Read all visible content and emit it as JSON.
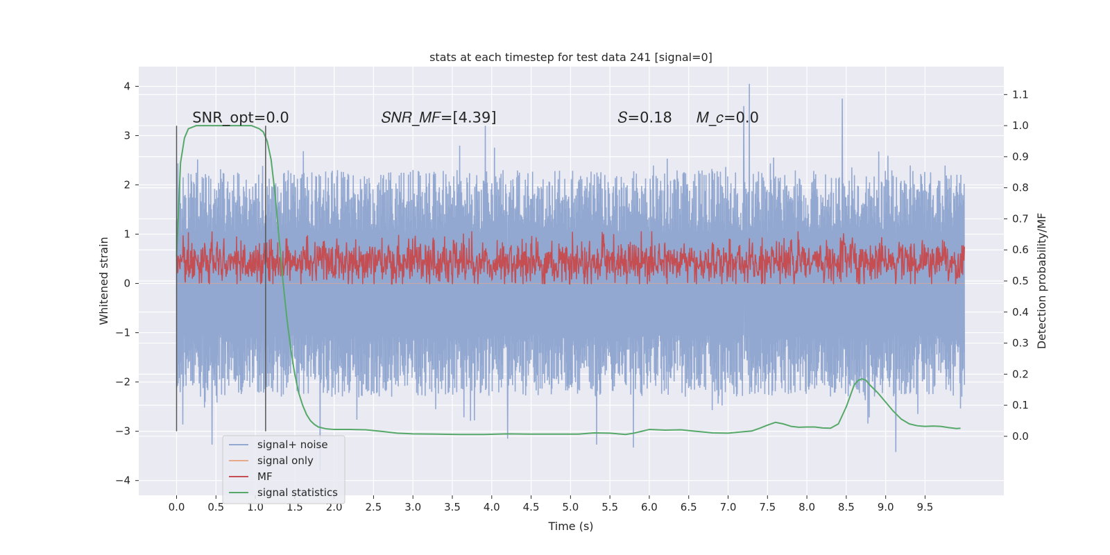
{
  "chart_data": {
    "type": "line",
    "title": "stats at each timestep for test data 241 [signal=0]",
    "xlabel": "Time (s)",
    "ylabel": "Whitened strain",
    "y2label": "Detection probability/MF",
    "xlim": [
      -0.48,
      10.5
    ],
    "ylim": [
      -4.3,
      4.4
    ],
    "y2lim": [
      -0.19,
      1.19
    ],
    "x_ticks": [
      "0.0",
      "0.5",
      "1.0",
      "1.5",
      "2.0",
      "2.5",
      "3.0",
      "3.5",
      "4.0",
      "4.5",
      "5.0",
      "5.5",
      "6.0",
      "6.5",
      "7.0",
      "7.5",
      "8.0",
      "8.5",
      "9.0",
      "9.5"
    ],
    "y_ticks": [
      "4",
      "3",
      "2",
      "1",
      "0",
      "−1",
      "−2",
      "−3",
      "−4"
    ],
    "y2_ticks": [
      "1.1",
      "1.0",
      "0.9",
      "0.8",
      "0.7",
      "0.6",
      "0.5",
      "0.4",
      "0.3",
      "0.2",
      "0.1",
      "0.0"
    ],
    "grid": true,
    "legend_position": "lower-left",
    "colors": {
      "signal_noise": "#92a8d1",
      "signal_only": "#e8a88a",
      "mf": "#c44e52",
      "signal_statistics": "#55a868",
      "background": "#eaeaf2",
      "vline": "#555555"
    },
    "annotations": [
      {
        "id": "snr-opt",
        "x": 0.2,
        "y": 3.27,
        "text": "SNR_opt=0.0"
      },
      {
        "id": "snr-mf",
        "x": 2.6,
        "y": 3.27,
        "text": "𝑆𝑁𝑅_𝑀𝐹=[4.39]"
      },
      {
        "id": "s",
        "x": 5.6,
        "y": 3.27,
        "text": "𝑆=0.18"
      },
      {
        "id": "mc",
        "x": 6.6,
        "y": 3.27,
        "text": "𝑀_𝑐=0.0"
      }
    ],
    "vlines": [
      {
        "x": 0.0,
        "ymin": -3.0,
        "ymax": 3.2
      },
      {
        "x": 1.13,
        "ymin": -3.0,
        "ymax": 3.2
      }
    ],
    "series": [
      {
        "name": "signal+ noise",
        "kind": "noise",
        "x_range": [
          0.0,
          10.0
        ],
        "y_range_typical": [
          -2.3,
          2.3
        ],
        "y_extremes": [
          -3.8,
          4.05
        ],
        "spikes": [
          {
            "x": 7.27,
            "y": 4.05
          },
          {
            "x": 8.45,
            "y": 3.75
          },
          {
            "x": 3.92,
            "y": 3.2
          },
          {
            "x": 7.2,
            "y": 3.6
          },
          {
            "x": 1.82,
            "y": -3.8
          },
          {
            "x": 9.13,
            "y": -3.42
          },
          {
            "x": 0.45,
            "y": -3.27
          },
          {
            "x": 5.8,
            "y": -3.33
          },
          {
            "x": 5.33,
            "y": -3.27
          },
          {
            "x": 4.2,
            "y": -3.15
          }
        ]
      },
      {
        "name": "signal only",
        "kind": "flat",
        "x_range": [
          0.0,
          10.0
        ],
        "y_value": 0.0
      },
      {
        "name": "MF",
        "kind": "mf",
        "axis": "right",
        "x_range": [
          0.0,
          10.0
        ],
        "y_range_typical": [
          0.5,
          0.62
        ],
        "y_extremes": [
          0.49,
          0.66
        ]
      },
      {
        "name": "signal statistics",
        "kind": "curve",
        "axis": "right",
        "x": [
          0.0,
          0.05,
          0.1,
          0.15,
          0.25,
          0.4,
          0.6,
          0.8,
          0.95,
          1.05,
          1.1,
          1.15,
          1.2,
          1.25,
          1.3,
          1.35,
          1.4,
          1.45,
          1.5,
          1.55,
          1.6,
          1.65,
          1.7,
          1.75,
          1.8,
          1.9,
          2.0,
          2.2,
          2.4,
          2.6,
          2.8,
          3.0,
          3.3,
          3.6,
          3.9,
          4.2,
          4.5,
          4.8,
          5.1,
          5.3,
          5.5,
          5.7,
          5.8,
          5.9,
          6.0,
          6.2,
          6.4,
          6.6,
          6.8,
          7.0,
          7.2,
          7.3,
          7.4,
          7.5,
          7.6,
          7.7,
          7.8,
          7.9,
          8.0,
          8.1,
          8.2,
          8.3,
          8.4,
          8.5,
          8.55,
          8.6,
          8.65,
          8.7,
          8.75,
          8.8,
          8.9,
          9.0,
          9.1,
          9.2,
          9.3,
          9.4,
          9.5,
          9.6,
          9.7,
          9.8,
          9.9,
          9.95
        ],
        "y": [
          0.58,
          0.88,
          0.96,
          0.99,
          1.0,
          1.0,
          1.0,
          1.0,
          1.0,
          0.99,
          0.98,
          0.95,
          0.89,
          0.78,
          0.64,
          0.5,
          0.38,
          0.28,
          0.2,
          0.14,
          0.1,
          0.07,
          0.05,
          0.038,
          0.03,
          0.024,
          0.022,
          0.022,
          0.021,
          0.016,
          0.01,
          0.008,
          0.007,
          0.006,
          0.006,
          0.008,
          0.007,
          0.007,
          0.007,
          0.011,
          0.01,
          0.006,
          0.01,
          0.016,
          0.022,
          0.02,
          0.021,
          0.016,
          0.011,
          0.01,
          0.015,
          0.017,
          0.026,
          0.036,
          0.045,
          0.04,
          0.032,
          0.029,
          0.03,
          0.03,
          0.027,
          0.026,
          0.04,
          0.095,
          0.13,
          0.165,
          0.18,
          0.185,
          0.18,
          0.165,
          0.14,
          0.11,
          0.08,
          0.055,
          0.04,
          0.034,
          0.032,
          0.033,
          0.032,
          0.028,
          0.025,
          0.026
        ]
      }
    ]
  }
}
